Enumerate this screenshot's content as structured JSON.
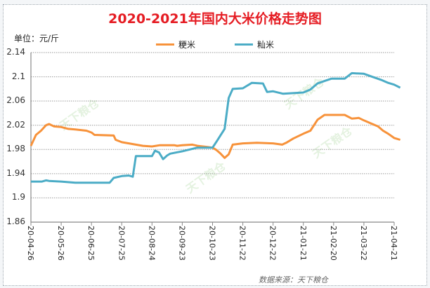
{
  "title": "2020-2021年国内大米价格走势图",
  "unit_label": "单位：元/斤",
  "source_label": "数据来源：天下粮仓",
  "watermark": "天下粮仓",
  "legend": [
    {
      "name": "粳米",
      "color": "#f7923a"
    },
    {
      "name": "籼米",
      "color": "#4bacc6"
    }
  ],
  "chart_data": {
    "type": "line",
    "title": "2020-2021年国内大米价格走势图",
    "xlabel": "",
    "ylabel": "单位：元/斤",
    "ylim": [
      1.86,
      2.14
    ],
    "y_ticks": [
      "2.14",
      "2.1",
      "2.06",
      "2.02",
      "1.98",
      "1.94",
      "1.9",
      "1.86"
    ],
    "x_ticks": [
      "20-04-26",
      "20-05-26",
      "20-06-25",
      "20-07-25",
      "20-08-24",
      "20-09-23",
      "20-10-23",
      "20-11-22",
      "20-12-22",
      "21-01-21",
      "21-02-20",
      "21-03-22",
      "21-04-21"
    ],
    "grid": true,
    "legend_position": "top",
    "series": [
      {
        "name": "粳米",
        "color": "#f7923a",
        "points": [
          [
            "20-04-26",
            1.986
          ],
          [
            "20-05-01",
            2.004
          ],
          [
            "20-05-06",
            2.011
          ],
          [
            "20-05-11",
            2.02
          ],
          [
            "20-05-14",
            2.022
          ],
          [
            "20-05-19",
            2.018
          ],
          [
            "20-05-26",
            2.017
          ],
          [
            "20-06-02",
            2.014
          ],
          [
            "20-06-09",
            2.013
          ],
          [
            "20-06-20",
            2.011
          ],
          [
            "20-06-25",
            2.008
          ],
          [
            "20-06-28",
            2.004
          ],
          [
            "20-07-17",
            2.003
          ],
          [
            "20-07-19",
            1.996
          ],
          [
            "20-07-25",
            1.992
          ],
          [
            "20-08-01",
            1.99
          ],
          [
            "20-08-08",
            1.988
          ],
          [
            "20-08-15",
            1.986
          ],
          [
            "20-08-24",
            1.985
          ],
          [
            "20-09-01",
            1.987
          ],
          [
            "20-09-15",
            1.987
          ],
          [
            "20-09-18",
            1.986
          ],
          [
            "20-09-23",
            1.987
          ],
          [
            "20-10-03",
            1.988
          ],
          [
            "20-10-08",
            1.986
          ],
          [
            "20-10-18",
            1.984
          ],
          [
            "20-10-23",
            1.983
          ],
          [
            "20-10-27",
            1.979
          ],
          [
            "20-10-31",
            1.973
          ],
          [
            "20-11-04",
            1.966
          ],
          [
            "20-11-08",
            1.972
          ],
          [
            "20-11-12",
            1.988
          ],
          [
            "20-11-22",
            1.99
          ],
          [
            "20-12-06",
            1.991
          ],
          [
            "20-12-22",
            1.99
          ],
          [
            "20-12-31",
            1.988
          ],
          [
            "21-01-04",
            1.991
          ],
          [
            "21-01-11",
            1.998
          ],
          [
            "21-01-21",
            2.006
          ],
          [
            "21-01-28",
            2.011
          ],
          [
            "21-02-04",
            2.029
          ],
          [
            "21-02-11",
            2.037
          ],
          [
            "21-02-20",
            2.037
          ],
          [
            "21-03-03",
            2.037
          ],
          [
            "21-03-10",
            2.031
          ],
          [
            "21-03-17",
            2.032
          ],
          [
            "21-03-22",
            2.028
          ],
          [
            "21-03-29",
            2.023
          ],
          [
            "21-04-05",
            2.018
          ],
          [
            "21-04-10",
            2.011
          ],
          [
            "21-04-15",
            2.006
          ],
          [
            "21-04-21",
            1.999
          ],
          [
            "21-04-27",
            1.996
          ]
        ]
      },
      {
        "name": "籼米",
        "color": "#4bacc6",
        "points": [
          [
            "20-04-26",
            1.927
          ],
          [
            "20-05-07",
            1.927
          ],
          [
            "20-05-11",
            1.929
          ],
          [
            "20-05-14",
            1.928
          ],
          [
            "20-05-26",
            1.927
          ],
          [
            "20-06-09",
            1.925
          ],
          [
            "20-06-25",
            1.925
          ],
          [
            "20-07-13",
            1.925
          ],
          [
            "20-07-17",
            1.933
          ],
          [
            "20-07-25",
            1.936
          ],
          [
            "20-08-01",
            1.937
          ],
          [
            "20-08-05",
            1.935
          ],
          [
            "20-08-08",
            1.969
          ],
          [
            "20-08-24",
            1.969
          ],
          [
            "20-08-27",
            1.978
          ],
          [
            "20-08-31",
            1.975
          ],
          [
            "20-09-04",
            1.964
          ],
          [
            "20-09-08",
            1.97
          ],
          [
            "20-09-11",
            1.973
          ],
          [
            "20-09-23",
            1.977
          ],
          [
            "20-10-08",
            1.983
          ],
          [
            "20-10-23",
            1.983
          ],
          [
            "20-10-27",
            1.993
          ],
          [
            "20-11-04",
            2.014
          ],
          [
            "20-11-08",
            2.065
          ],
          [
            "20-11-12",
            2.08
          ],
          [
            "20-11-22",
            2.081
          ],
          [
            "20-12-01",
            2.09
          ],
          [
            "20-12-12",
            2.089
          ],
          [
            "20-12-16",
            2.075
          ],
          [
            "20-12-22",
            2.076
          ],
          [
            "21-01-01",
            2.072
          ],
          [
            "21-01-11",
            2.073
          ],
          [
            "21-01-21",
            2.074
          ],
          [
            "21-01-28",
            2.079
          ],
          [
            "21-02-04",
            2.089
          ],
          [
            "21-02-11",
            2.093
          ],
          [
            "21-02-18",
            2.097
          ],
          [
            "21-03-03",
            2.097
          ],
          [
            "21-03-10",
            2.106
          ],
          [
            "21-03-22",
            2.105
          ],
          [
            "21-04-01",
            2.099
          ],
          [
            "21-04-08",
            2.095
          ],
          [
            "21-04-15",
            2.09
          ],
          [
            "21-04-21",
            2.087
          ],
          [
            "21-04-27",
            2.082
          ]
        ]
      }
    ]
  }
}
